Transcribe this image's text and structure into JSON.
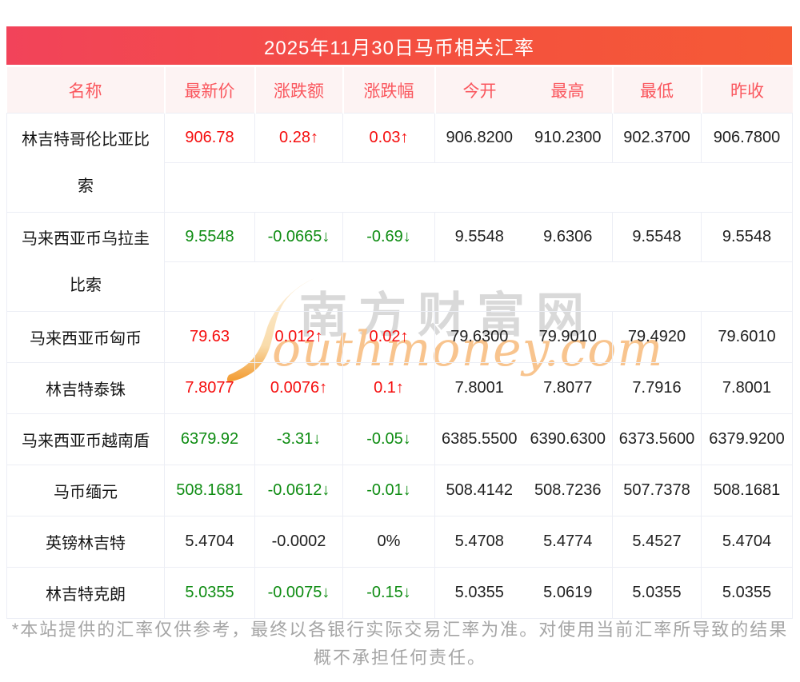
{
  "banner": {
    "title": "2025年11月30日马币相关汇率"
  },
  "table": {
    "headers": [
      "名称",
      "最新价",
      "涨跌额",
      "涨跌幅",
      "今开",
      "最高",
      "最低",
      "昨收"
    ],
    "rows": [
      {
        "name": "林吉特哥伦比亚比索",
        "latest": "906.78",
        "change": "0.28↑",
        "pct": "0.03↑",
        "open": "906.8200",
        "high": "910.2300",
        "low": "902.3700",
        "prev": "906.7800",
        "trend": "up",
        "two_line": true
      },
      {
        "name": "马来西亚币乌拉圭比索",
        "latest": "9.5548",
        "change": "-0.0665↓",
        "pct": "-0.69↓",
        "open": "9.5548",
        "high": "9.6306",
        "low": "9.5548",
        "prev": "9.5548",
        "trend": "down",
        "two_line": true
      },
      {
        "name": "马来西亚币匈币",
        "latest": "79.63",
        "change": "0.012↑",
        "pct": "0.02↑",
        "open": "79.6300",
        "high": "79.9010",
        "low": "79.4920",
        "prev": "79.6010",
        "trend": "up",
        "two_line": false
      },
      {
        "name": "林吉特泰铢",
        "latest": "7.8077",
        "change": "0.0076↑",
        "pct": "0.1↑",
        "open": "7.8001",
        "high": "7.8077",
        "low": "7.7916",
        "prev": "7.8001",
        "trend": "up",
        "two_line": false
      },
      {
        "name": "马来西亚币越南盾",
        "latest": "6379.92",
        "change": "-3.31↓",
        "pct": "-0.05↓",
        "open": "6385.5500",
        "high": "6390.6300",
        "low": "6373.5600",
        "prev": "6379.9200",
        "trend": "down",
        "two_line": false
      },
      {
        "name": "马币缅元",
        "latest": "508.1681",
        "change": "-0.0612↓",
        "pct": "-0.01↓",
        "open": "508.4142",
        "high": "508.7236",
        "low": "507.7378",
        "prev": "508.1681",
        "trend": "down",
        "two_line": false
      },
      {
        "name": "英镑林吉特",
        "latest": "5.4704",
        "change": "-0.0002",
        "pct": "0%",
        "open": "5.4708",
        "high": "5.4774",
        "low": "5.4527",
        "prev": "5.4704",
        "trend": "flat",
        "two_line": false
      },
      {
        "name": "林吉特克朗",
        "latest": "5.0355",
        "change": "-0.0075↓",
        "pct": "-0.15↓",
        "open": "5.0355",
        "high": "5.0619",
        "low": "5.0355",
        "prev": "5.0355",
        "trend": "down",
        "two_line": false
      }
    ]
  },
  "watermark": {
    "cn": "南方财富网",
    "en": "outhmoney.com"
  },
  "footer": {
    "line1": "*本站提供的汇率仅供参考，最终以各银行实际交易汇率为准。对使用当前汇率所导致的结果",
    "line2": "概不承担任何责任。"
  },
  "colors": {
    "banner_gradient_left": "#f2435a",
    "banner_gradient_right": "#f55a36",
    "header_bg": "#fdf3f3",
    "header_text": "#fa575e",
    "up": "#f50d0d",
    "down": "#0e8c12",
    "border": "#eceef5",
    "footer_text": "#a5a5a5"
  }
}
